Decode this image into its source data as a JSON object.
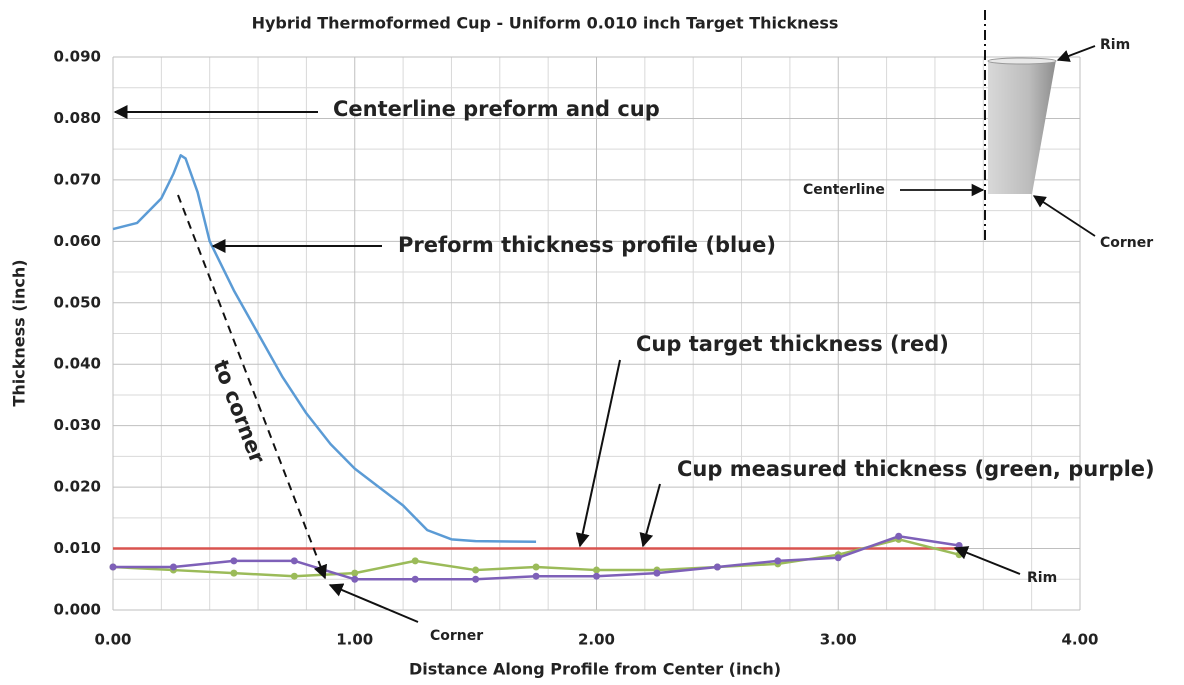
{
  "chart_data": {
    "type": "line",
    "title": "Hybrid Thermoformed Cup - Uniform 0.010 inch Target Thickness",
    "x_label": "Distance Along Profile from Center (inch)",
    "y_label": "Thickness (inch)",
    "xlim": [
      0,
      4
    ],
    "ylim": [
      0,
      0.09
    ],
    "xticks": [
      {
        "value": 0,
        "label": "0.00"
      },
      {
        "value": 1,
        "label": "1.00"
      },
      {
        "value": 2,
        "label": "2.00"
      },
      {
        "value": 3,
        "label": "3.00"
      },
      {
        "value": 4,
        "label": "4.00"
      }
    ],
    "yticks": [
      {
        "value": 0,
        "label": "0.000"
      },
      {
        "value": 0.01,
        "label": "0.010"
      },
      {
        "value": 0.02,
        "label": "0.020"
      },
      {
        "value": 0.03,
        "label": "0.030"
      },
      {
        "value": 0.04,
        "label": "0.040"
      },
      {
        "value": 0.05,
        "label": "0.050"
      },
      {
        "value": 0.06,
        "label": "0.060"
      },
      {
        "value": 0.07,
        "label": "0.070"
      },
      {
        "value": 0.08,
        "label": "0.080"
      },
      {
        "value": 0.09,
        "label": "0.090"
      }
    ],
    "x_minor_grid": [
      0.2,
      0.4,
      0.6,
      0.8,
      1.2,
      1.4,
      1.6,
      1.8,
      2.2,
      2.4,
      2.6,
      2.8,
      3.2,
      3.4,
      3.6,
      3.8
    ],
    "y_minor_grid": [
      0.005,
      0.015,
      0.025,
      0.035,
      0.045,
      0.055,
      0.065,
      0.075,
      0.085
    ],
    "grid": true,
    "series": [
      {
        "color": "#5b9bd5",
        "markers": false,
        "x": [
          0,
          0.1,
          0.2,
          0.25,
          0.28,
          0.3,
          0.35,
          0.4,
          0.5,
          0.6,
          0.7,
          0.8,
          0.9,
          1.0,
          1.1,
          1.2,
          1.3,
          1.4,
          1.5,
          1.75
        ],
        "values": [
          0.062,
          0.063,
          0.067,
          0.071,
          0.074,
          0.0735,
          0.068,
          0.06,
          0.052,
          0.045,
          0.038,
          0.032,
          0.027,
          0.023,
          0.02,
          0.017,
          0.013,
          0.0115,
          0.0112,
          0.0111
        ]
      },
      {
        "color": "#d9534f",
        "markers": false,
        "x": [
          0,
          3.5
        ],
        "values": [
          0.01,
          0.01
        ]
      },
      {
        "color": "#9bbb59",
        "markers": true,
        "x": [
          0,
          0.25,
          0.5,
          0.75,
          1.0,
          1.25,
          1.5,
          1.75,
          2.0,
          2.25,
          2.5,
          2.75,
          3.0,
          3.25,
          3.5
        ],
        "values": [
          0.007,
          0.0065,
          0.006,
          0.0055,
          0.006,
          0.008,
          0.0065,
          0.007,
          0.0065,
          0.0065,
          0.007,
          0.0075,
          0.009,
          0.0115,
          0.009
        ]
      },
      {
        "color": "#7e60b8",
        "markers": true,
        "x": [
          0,
          0.25,
          0.5,
          0.75,
          1.0,
          1.25,
          1.5,
          1.75,
          2.0,
          2.25,
          2.5,
          2.75,
          3.0,
          3.25,
          3.5
        ],
        "values": [
          0.007,
          0.007,
          0.008,
          0.008,
          0.005,
          0.005,
          0.005,
          0.0055,
          0.0055,
          0.006,
          0.007,
          0.008,
          0.0085,
          0.012,
          0.0105
        ]
      }
    ],
    "annotations": [
      "Centerline preform and cup",
      "Preform thickness profile (blue)",
      "Cup target thickness (red)",
      "Cup measured thickness (green, purple)",
      "to corner",
      "Corner",
      "Rim"
    ],
    "inset_labels": [
      "Rim",
      "Centerline",
      "Corner"
    ]
  }
}
